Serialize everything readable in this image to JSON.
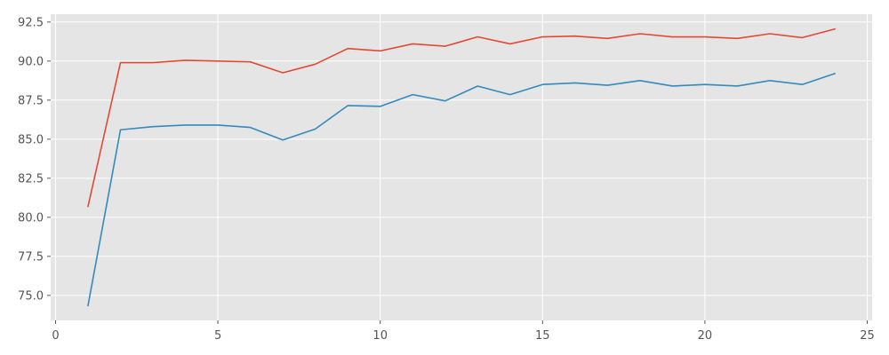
{
  "chart_data": {
    "type": "line",
    "title": "",
    "xlabel": "",
    "ylabel": "",
    "xlim": [
      -0.15,
      25.15
    ],
    "ylim": [
      73.4,
      93.0
    ],
    "xticks": [
      0,
      5,
      10,
      15,
      20,
      25
    ],
    "xtick_labels": [
      "0",
      "5",
      "10",
      "15",
      "20",
      "25"
    ],
    "yticks": [
      75.0,
      77.5,
      80.0,
      82.5,
      85.0,
      87.5,
      90.0,
      92.5
    ],
    "ytick_labels": [
      "75.0",
      "77.5",
      "80.0",
      "82.5",
      "85.0",
      "87.5",
      "90.0",
      "92.5"
    ],
    "grid": true,
    "background": "#e5e5e5",
    "grid_color": "#ffffff",
    "series": [
      {
        "color": "#e24a33",
        "x": [
          1,
          2,
          3,
          4,
          5,
          6,
          7,
          8,
          9,
          10,
          11,
          12,
          13,
          14,
          15,
          16,
          17,
          18,
          19,
          20,
          21,
          22,
          23,
          24
        ],
        "y": [
          80.7,
          89.9,
          89.9,
          90.05,
          90.0,
          89.95,
          89.25,
          89.8,
          90.8,
          90.65,
          91.1,
          90.95,
          91.55,
          91.1,
          91.55,
          91.6,
          91.45,
          91.75,
          91.55,
          91.55,
          91.45,
          91.75,
          91.5,
          92.05
        ]
      },
      {
        "color": "#348abd",
        "x": [
          1,
          2,
          3,
          4,
          5,
          6,
          7,
          8,
          9,
          10,
          11,
          12,
          13,
          14,
          15,
          16,
          17,
          18,
          19,
          20,
          21,
          22,
          23,
          24
        ],
        "y": [
          74.35,
          85.6,
          85.8,
          85.9,
          85.9,
          85.75,
          84.95,
          85.65,
          87.15,
          87.1,
          87.85,
          87.45,
          88.4,
          87.85,
          88.5,
          88.6,
          88.45,
          88.75,
          88.4,
          88.5,
          88.4,
          88.75,
          88.5,
          89.2
        ]
      }
    ]
  }
}
